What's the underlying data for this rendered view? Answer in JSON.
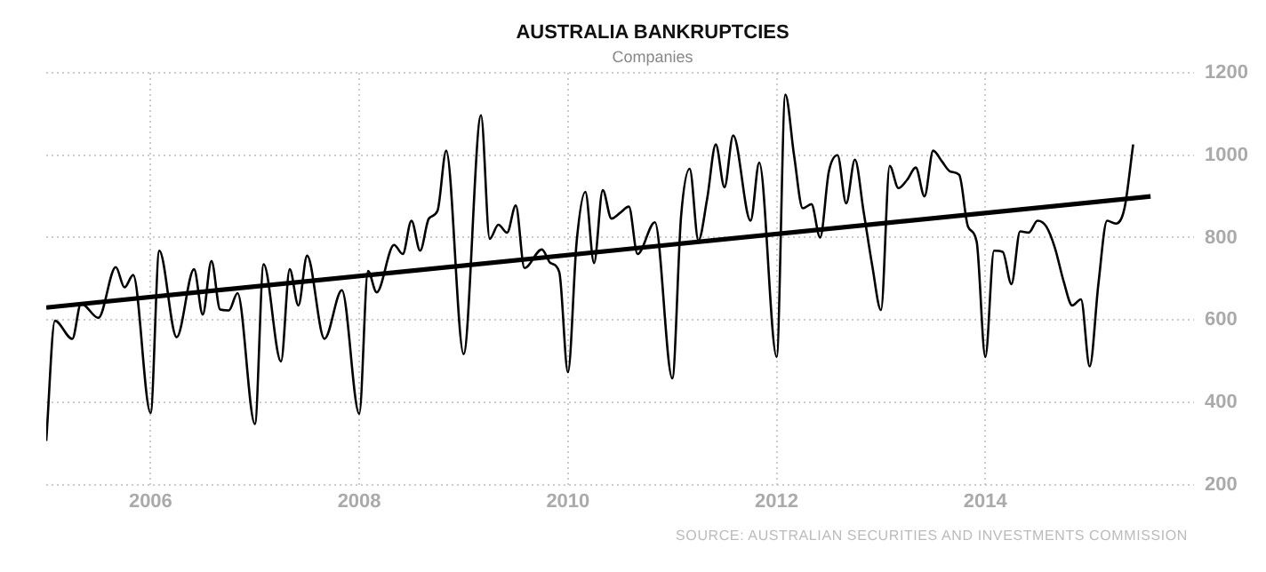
{
  "chart_data": {
    "type": "line",
    "title": "AUSTRALIA BANKRUPTCIES",
    "subtitle": "Companies",
    "annotations": [
      "SOURCE: AUSTRALIAN SECURITIES AND INVESTMENTS COMMISSION"
    ],
    "xlim": [
      "2005-01",
      "2016-01"
    ],
    "xticks": [
      "2006",
      "2008",
      "2010",
      "2012",
      "2014"
    ],
    "ylim": [
      200,
      1200
    ],
    "yticks": [
      200,
      400,
      600,
      800,
      1000,
      1200
    ],
    "grid": true,
    "legend": false,
    "marker": "none",
    "line_style": "solid",
    "series": [
      {
        "color": "#000000",
        "x": [
          "2005-01",
          "2005-02",
          "2005-04",
          "2005-05",
          "2005-07",
          "2005-09",
          "2005-10",
          "2005-11",
          "2006-01",
          "2006-02",
          "2006-04",
          "2006-06",
          "2006-07",
          "2006-08",
          "2006-09",
          "2006-10",
          "2006-11",
          "2007-01",
          "2007-02",
          "2007-04",
          "2007-05",
          "2007-06",
          "2007-07",
          "2007-09",
          "2007-11",
          "2008-01",
          "2008-02",
          "2008-03",
          "2008-05",
          "2008-06",
          "2008-07",
          "2008-08",
          "2008-09",
          "2008-10",
          "2008-11",
          "2009-01",
          "2009-03",
          "2009-04",
          "2009-05",
          "2009-06",
          "2009-07",
          "2009-08",
          "2009-10",
          "2009-11",
          "2009-12",
          "2010-01",
          "2010-02",
          "2010-03",
          "2010-04",
          "2010-05",
          "2010-06",
          "2010-07",
          "2010-08",
          "2010-09",
          "2010-11",
          "2011-01",
          "2011-02",
          "2011-03",
          "2011-04",
          "2011-05",
          "2011-06",
          "2011-07",
          "2011-08",
          "2011-10",
          "2011-11",
          "2012-01",
          "2012-02",
          "2012-03",
          "2012-04",
          "2012-05",
          "2012-06",
          "2012-07",
          "2012-08",
          "2012-09",
          "2012-10",
          "2012-11",
          "2012-12",
          "2013-01",
          "2013-02",
          "2013-03",
          "2013-04",
          "2013-05",
          "2013-06",
          "2013-07",
          "2013-08",
          "2013-09",
          "2013-10",
          "2013-11",
          "2013-12",
          "2014-01",
          "2014-02",
          "2014-03",
          "2014-04",
          "2014-05",
          "2014-06",
          "2014-07",
          "2014-08",
          "2014-09",
          "2014-10",
          "2014-11",
          "2014-12",
          "2015-01",
          "2015-02",
          "2015-03",
          "2015-04",
          "2015-05",
          "2015-06"
        ],
        "values": [
          306,
          598,
          554,
          640,
          605,
          728,
          679,
          709,
          374,
          768,
          558,
          723,
          613,
          743,
          625,
          623,
          665,
          347,
          735,
          499,
          723,
          635,
          756,
          554,
          672,
          372,
          719,
          667,
          782,
          760,
          841,
          768,
          846,
          865,
          1011,
          517,
          1097,
          797,
          831,
          812,
          878,
          726,
          771,
          738,
          716,
          473,
          790,
          911,
          738,
          915,
          846,
          860,
          875,
          760,
          837,
          458,
          849,
          967,
          793,
          893,
          1026,
          922,
          1048,
          841,
          982,
          510,
          1147,
          1000,
          871,
          881,
          800,
          960,
          1000,
          883,
          989,
          863,
          731,
          624,
          974,
          920,
          940,
          970,
          900,
          1011,
          985,
          960,
          952,
          827,
          790,
          510,
          768,
          765,
          687,
          815,
          812,
          841,
          827,
          775,
          694,
          635,
          650,
          487,
          687,
          841,
          834,
          871,
          1026
        ]
      },
      {
        "type": "line",
        "color": "#000000",
        "x": [
          "2005-01",
          "2015-08"
        ],
        "values": [
          630,
          900
        ]
      }
    ]
  }
}
